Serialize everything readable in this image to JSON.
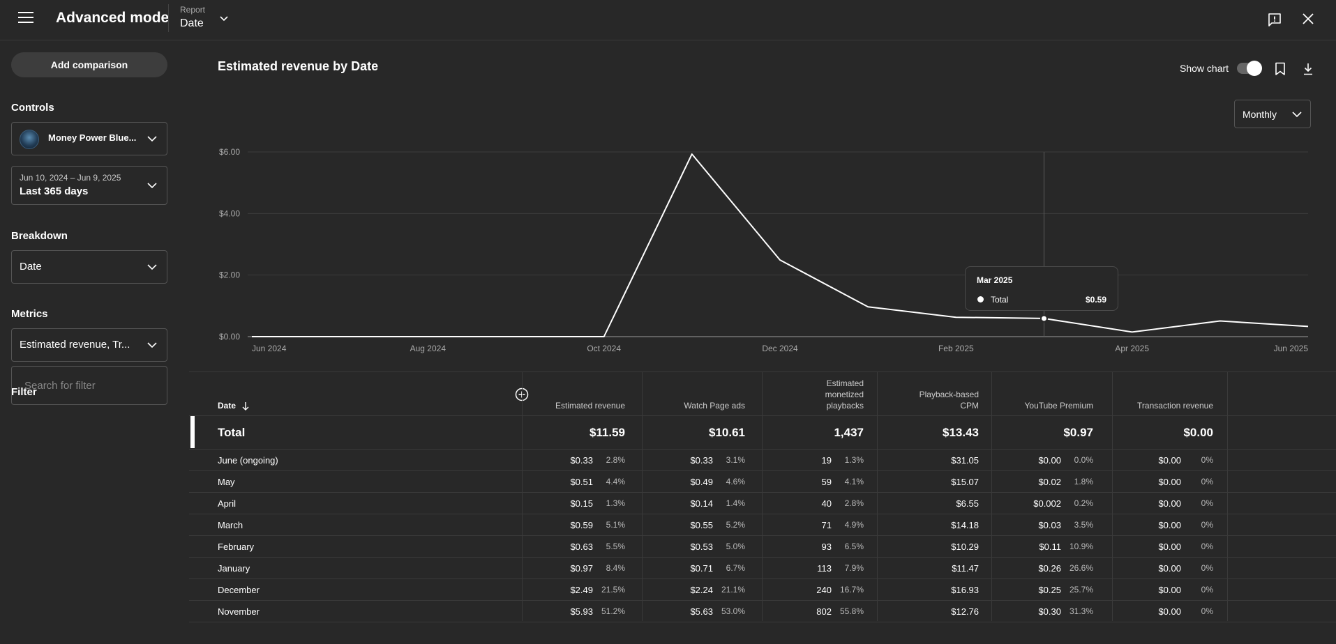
{
  "header": {
    "title": "Advanced mode",
    "report_label": "Report",
    "report_value": "Date"
  },
  "sidebar": {
    "add_comparison": "Add comparison",
    "controls_label": "Controls",
    "channel_name": "Money Power Blue...",
    "date_range_sub": "Jun 10, 2024 – Jun 9, 2025",
    "date_range_main": "Last 365 days",
    "breakdown_label": "Breakdown",
    "breakdown_value": "Date",
    "metrics_label": "Metrics",
    "metrics_value": "Estimated revenue, Tr...",
    "filter_label": "Filter",
    "filter_placeholder": "Search for filter"
  },
  "chart_panel": {
    "title": "Estimated revenue by Date",
    "show_chart_label": "Show chart",
    "show_chart_on": true,
    "granularity": "Monthly"
  },
  "chart_data": {
    "type": "line",
    "series": [
      {
        "name": "Total",
        "x": [
          "Jun 2024",
          "Jul 2024",
          "Aug 2024",
          "Sep 2024",
          "Oct 2024",
          "Nov 2024",
          "Dec 2024",
          "Jan 2025",
          "Feb 2025",
          "Mar 2025",
          "Apr 2025",
          "May 2025",
          "Jun 2025"
        ],
        "values": [
          0,
          0,
          0,
          0,
          0,
          5.93,
          2.49,
          0.97,
          0.63,
          0.59,
          0.15,
          0.51,
          0.33
        ]
      }
    ],
    "yticks": [
      "$0.00",
      "$2.00",
      "$4.00",
      "$6.00"
    ],
    "ytick_values": [
      0,
      2,
      4,
      6
    ],
    "xticks": [
      "Jun 2024",
      "Aug 2024",
      "Oct 2024",
      "Dec 2024",
      "Feb 2025",
      "Apr 2025",
      "Jun 2025"
    ],
    "xtick_index": [
      0,
      2,
      4,
      6,
      8,
      10,
      12
    ],
    "ylim": [
      0,
      6
    ],
    "grid": true,
    "hover_index": 9,
    "tooltip": {
      "title": "Mar 2025",
      "series": "Total",
      "value": "$0.59"
    }
  },
  "table": {
    "columns": [
      {
        "label": "Date"
      },
      {
        "label": "Estimated revenue"
      },
      {
        "label": "Watch Page ads"
      },
      {
        "label": "Estimated monetized playbacks"
      },
      {
        "label": "Playback-based CPM"
      },
      {
        "label": "YouTube Premium"
      },
      {
        "label": "Transaction revenue"
      }
    ],
    "total": {
      "name": "Total",
      "values": [
        "$11.59",
        "$10.61",
        "1,437",
        "$13.43",
        "$0.97",
        "$0.00"
      ]
    },
    "rows": [
      {
        "name": "June (ongoing)",
        "c1": "$0.33",
        "p1": "2.8%",
        "c2": "$0.33",
        "p2": "3.1%",
        "c3": "19",
        "p3": "1.3%",
        "c4": "$31.05",
        "c5": "$0.00",
        "p5": "0.0%",
        "c6": "$0.00",
        "p6": "0%"
      },
      {
        "name": "May",
        "c1": "$0.51",
        "p1": "4.4%",
        "c2": "$0.49",
        "p2": "4.6%",
        "c3": "59",
        "p3": "4.1%",
        "c4": "$15.07",
        "c5": "$0.02",
        "p5": "1.8%",
        "c6": "$0.00",
        "p6": "0%"
      },
      {
        "name": "April",
        "c1": "$0.15",
        "p1": "1.3%",
        "c2": "$0.14",
        "p2": "1.4%",
        "c3": "40",
        "p3": "2.8%",
        "c4": "$6.55",
        "c5": "$0.002",
        "p5": "0.2%",
        "c6": "$0.00",
        "p6": "0%"
      },
      {
        "name": "March",
        "c1": "$0.59",
        "p1": "5.1%",
        "c2": "$0.55",
        "p2": "5.2%",
        "c3": "71",
        "p3": "4.9%",
        "c4": "$14.18",
        "c5": "$0.03",
        "p5": "3.5%",
        "c6": "$0.00",
        "p6": "0%"
      },
      {
        "name": "February",
        "c1": "$0.63",
        "p1": "5.5%",
        "c2": "$0.53",
        "p2": "5.0%",
        "c3": "93",
        "p3": "6.5%",
        "c4": "$10.29",
        "c5": "$0.11",
        "p5": "10.9%",
        "c6": "$0.00",
        "p6": "0%"
      },
      {
        "name": "January",
        "c1": "$0.97",
        "p1": "8.4%",
        "c2": "$0.71",
        "p2": "6.7%",
        "c3": "113",
        "p3": "7.9%",
        "c4": "$11.47",
        "c5": "$0.26",
        "p5": "26.6%",
        "c6": "$0.00",
        "p6": "0%"
      },
      {
        "name": "December",
        "c1": "$2.49",
        "p1": "21.5%",
        "c2": "$2.24",
        "p2": "21.1%",
        "c3": "240",
        "p3": "16.7%",
        "c4": "$16.93",
        "c5": "$0.25",
        "p5": "25.7%",
        "c6": "$0.00",
        "p6": "0%"
      },
      {
        "name": "November",
        "c1": "$5.93",
        "p1": "51.2%",
        "c2": "$5.63",
        "p2": "53.0%",
        "c3": "802",
        "p3": "55.8%",
        "c4": "$12.76",
        "c5": "$0.30",
        "p5": "31.3%",
        "c6": "$0.00",
        "p6": "0%"
      }
    ]
  },
  "icons": {
    "menu": "hamburger-icon",
    "feedback": "feedback-icon",
    "close": "close-icon",
    "bookmark": "bookmark-icon",
    "download": "download-icon",
    "add_column": "add-circle-icon",
    "sort": "arrow-down-icon",
    "chevron": "chevron-down-icon"
  }
}
